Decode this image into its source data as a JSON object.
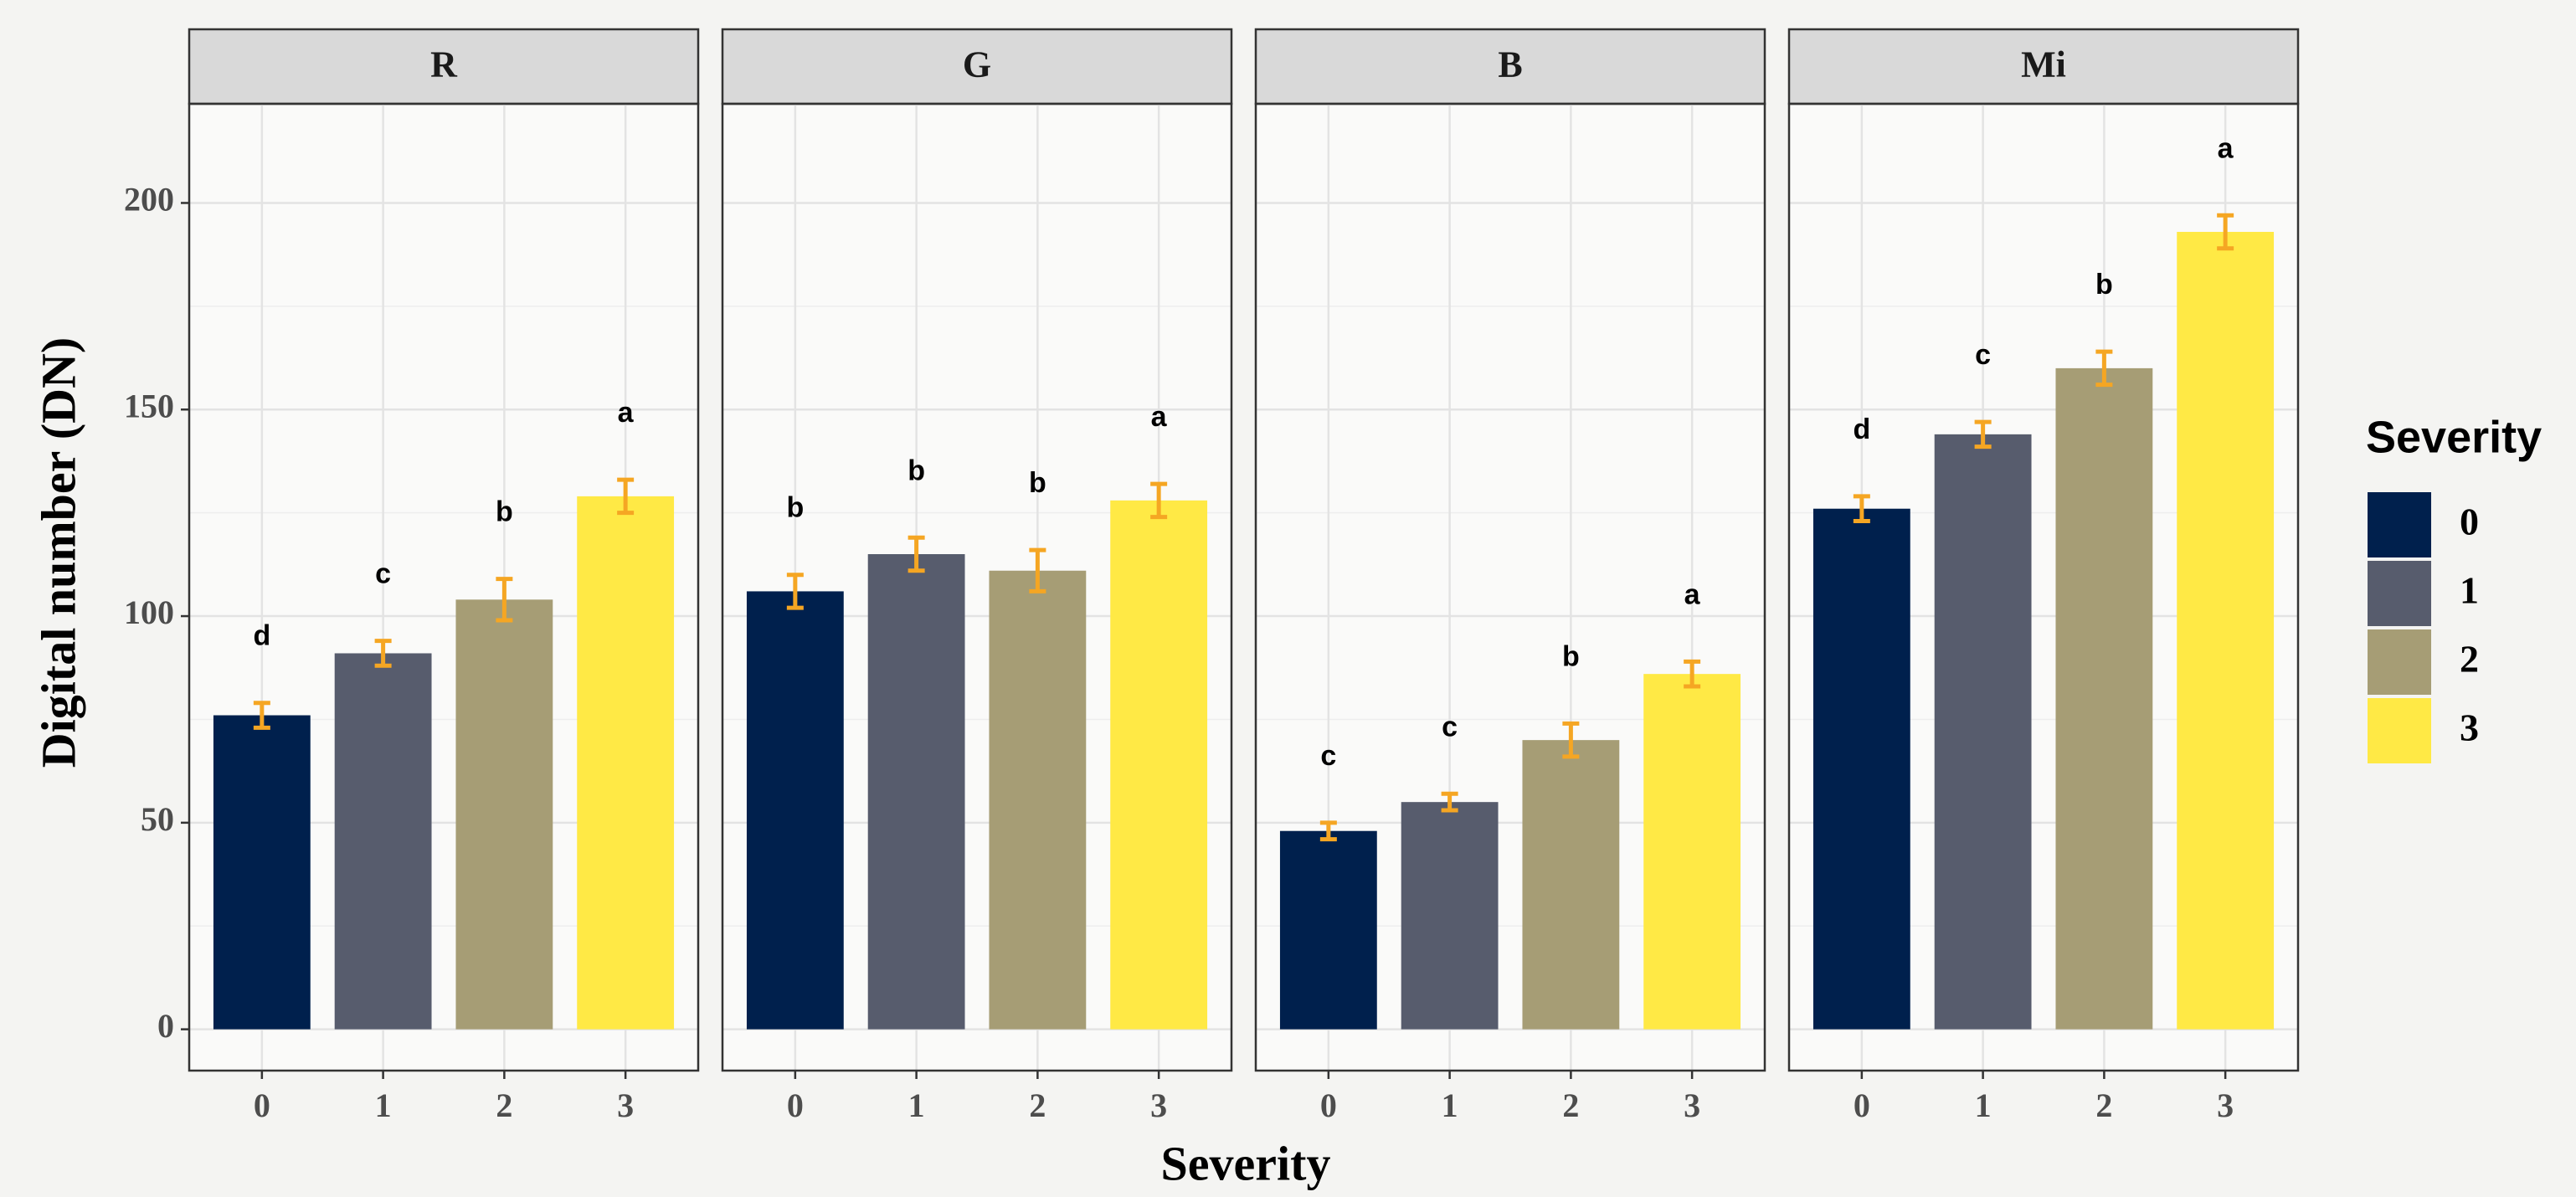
{
  "chart_data": {
    "type": "bar",
    "x_label": "Severity",
    "y_label": "Digital number (DN)",
    "categories": [
      "0",
      "1",
      "2",
      "3"
    ],
    "colors": [
      "#00204d",
      "#575c6d",
      "#a69d75",
      "#ffe945"
    ],
    "error_color": "#f5a623",
    "legend_title": "Severity",
    "legend_position": "right",
    "grid": true,
    "ylim": [
      -10,
      224
    ],
    "yticks": [
      0,
      50,
      100,
      150,
      200
    ],
    "facets": [
      {
        "title": "R",
        "values": [
          76,
          91,
          104,
          129
        ],
        "errors": [
          3,
          3,
          5,
          4
        ],
        "letters": [
          "d",
          "c",
          "b",
          "a"
        ]
      },
      {
        "title": "G",
        "values": [
          106,
          115,
          111,
          128
        ],
        "errors": [
          4,
          4,
          5,
          4
        ],
        "letters": [
          "b",
          "b",
          "b",
          "a"
        ]
      },
      {
        "title": "B",
        "values": [
          48,
          55,
          70,
          86
        ],
        "errors": [
          2,
          2,
          4,
          3
        ],
        "letters": [
          "c",
          "c",
          "b",
          "a"
        ]
      },
      {
        "title": "Mi",
        "values": [
          126,
          144,
          160,
          193
        ],
        "errors": [
          3,
          3,
          4,
          4
        ],
        "letters": [
          "d",
          "c",
          "b",
          "a"
        ]
      }
    ]
  }
}
